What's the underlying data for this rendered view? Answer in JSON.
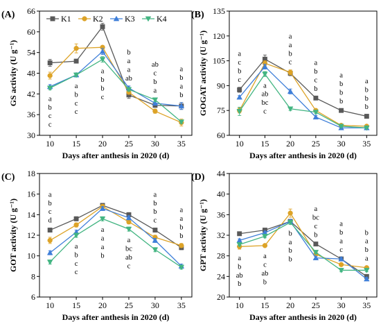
{
  "legend": {
    "placement": "top-left of panel A",
    "series": [
      {
        "name": "K1",
        "color": "#595959",
        "marker": "square"
      },
      {
        "name": "K2",
        "color": "#DDA327",
        "marker": "circle"
      },
      {
        "name": "K3",
        "color": "#3F7FD9",
        "marker": "triangle-up"
      },
      {
        "name": "K4",
        "color": "#43B582",
        "marker": "triangle-down"
      }
    ]
  },
  "chart_data": [
    {
      "type": "line",
      "panel": "(A)",
      "xlabel": "Days after anthesis in 2020 (d)",
      "ylabel": "GS activity (U g⁻¹)",
      "x": [
        10,
        15,
        20,
        25,
        30,
        35
      ],
      "xlim": [
        8,
        37
      ],
      "ylim": [
        30,
        66
      ],
      "yticks": [
        30,
        36,
        42,
        48,
        54,
        60,
        66
      ],
      "grid": false,
      "series": [
        {
          "name": "K1",
          "values": [
            51.0,
            51.5,
            61.5,
            41.7,
            38.7,
            38.5
          ],
          "errors": [
            1.0,
            0.5,
            1.0,
            1.0,
            0.6,
            1.0
          ]
        },
        {
          "name": "K2",
          "values": [
            47.3,
            55.2,
            55.5,
            42.5,
            37.0,
            33.7
          ],
          "errors": [
            1.0,
            1.3,
            0.5,
            0.6,
            0.6,
            1.0
          ]
        },
        {
          "name": "K3",
          "values": [
            44.1,
            47.5,
            54.3,
            43.7,
            39.3,
            38.5
          ],
          "errors": [
            0.6,
            0.6,
            0.9,
            0.6,
            0.5,
            1.0
          ]
        },
        {
          "name": "K4",
          "values": [
            43.7,
            47.5,
            52.0,
            43.3,
            40.3,
            33.9
          ],
          "errors": [
            0.5,
            0.5,
            0.8,
            0.5,
            0.5,
            0.5
          ]
        }
      ],
      "significance": [
        {
          "x": 10,
          "letters": [
            "a",
            "b",
            "c",
            "c"
          ],
          "position": "below"
        },
        {
          "x": 15,
          "letters": [
            "a",
            "b",
            "c",
            "c"
          ],
          "position": "below"
        },
        {
          "x": 20,
          "letters": [
            "a",
            "b",
            "b",
            "c"
          ],
          "position": "below"
        },
        {
          "x": 25,
          "letters": [
            "b",
            "a",
            "a",
            "ab"
          ],
          "position": "above"
        },
        {
          "x": 30,
          "letters": [
            "ab",
            "c",
            "b",
            "a"
          ],
          "position": "above"
        },
        {
          "x": 35,
          "letters": [
            "a",
            "b",
            "a",
            "b"
          ],
          "position": "above"
        }
      ]
    },
    {
      "type": "line",
      "panel": "(B)",
      "xlabel": "Days after anthesis in 2020 (d)",
      "ylabel": "GOGAT activity (U g⁻¹)",
      "x": [
        10,
        15,
        20,
        25,
        30,
        35
      ],
      "xlim": [
        8,
        37
      ],
      "ylim": [
        60,
        135
      ],
      "yticks": [
        60,
        75,
        90,
        105,
        120,
        135
      ],
      "grid": false,
      "series": [
        {
          "name": "K1",
          "values": [
            87.5,
            106.0,
            97.5,
            82.5,
            75.0,
            71.5
          ],
          "errors": [
            1.5,
            2.5,
            1.5,
            1.0,
            1.0,
            1.0
          ]
        },
        {
          "name": "K2",
          "values": [
            75.0,
            103.5,
            98.0,
            75.0,
            66.0,
            65.5
          ],
          "errors": [
            1.5,
            1.5,
            1.5,
            1.0,
            0.5,
            0.5
          ]
        },
        {
          "name": "K3",
          "values": [
            83.0,
            101.5,
            86.5,
            71.0,
            64.5,
            64.5
          ],
          "errors": [
            1.0,
            1.5,
            1.5,
            1.0,
            0.5,
            0.5
          ]
        },
        {
          "name": "K4",
          "values": [
            74.5,
            97.0,
            76.0,
            74.0,
            65.5,
            64.5
          ],
          "errors": [
            2.5,
            1.5,
            1.0,
            1.0,
            0.5,
            0.5
          ]
        }
      ],
      "significance": [
        {
          "x": 10,
          "letters": [
            "a",
            "c",
            "b",
            "c"
          ],
          "position": "above"
        },
        {
          "x": 15,
          "letters": [
            "a",
            "ab",
            "bc",
            "c"
          ],
          "position": "below"
        },
        {
          "x": 20,
          "letters": [
            "a",
            "a",
            "b",
            "c"
          ],
          "position": "above"
        },
        {
          "x": 25,
          "letters": [
            "a",
            "b",
            "c",
            "b"
          ],
          "position": "above"
        },
        {
          "x": 30,
          "letters": [
            "a",
            "b",
            "b",
            "b"
          ],
          "position": "above"
        },
        {
          "x": 35,
          "letters": [
            "a",
            "b",
            "b",
            "b"
          ],
          "position": "above"
        }
      ]
    },
    {
      "type": "line",
      "panel": "(C)",
      "xlabel": "Days after anthesis in 2020 (d)",
      "ylabel": "GOT activity (U g⁻¹)",
      "x": [
        10,
        15,
        20,
        25,
        30,
        35
      ],
      "xlim": [
        8,
        37
      ],
      "ylim": [
        6,
        18
      ],
      "yticks": [
        6,
        8,
        10,
        12,
        14,
        16,
        18
      ],
      "grid": false,
      "series": [
        {
          "name": "K1",
          "values": [
            12.5,
            13.6,
            14.9,
            14.0,
            12.5,
            10.8
          ],
          "errors": [
            0.2,
            0.2,
            0.2,
            0.2,
            0.2,
            0.2
          ]
        },
        {
          "name": "K2",
          "values": [
            11.5,
            13.0,
            14.8,
            13.3,
            11.8,
            11.0
          ],
          "errors": [
            0.3,
            0.2,
            0.2,
            0.2,
            0.2,
            0.2
          ]
        },
        {
          "name": "K3",
          "values": [
            10.3,
            12.3,
            14.6,
            13.7,
            11.5,
            9.0
          ],
          "errors": [
            0.2,
            0.2,
            0.2,
            0.2,
            0.2,
            0.2
          ]
        },
        {
          "name": "K4",
          "values": [
            9.4,
            12.0,
            13.6,
            12.6,
            10.6,
            8.9
          ],
          "errors": [
            0.2,
            0.2,
            0.2,
            0.2,
            0.2,
            0.2
          ]
        }
      ],
      "significance": [
        {
          "x": 10,
          "letters": [
            "a",
            "b",
            "c",
            "d"
          ],
          "position": "above"
        },
        {
          "x": 15,
          "letters": [
            "a",
            "b",
            "c",
            "c"
          ],
          "position": "below"
        },
        {
          "x": 20,
          "letters": [
            "a",
            "a",
            "a",
            "b"
          ],
          "position": "below"
        },
        {
          "x": 25,
          "letters": [
            "a",
            "bc",
            "ab",
            "c"
          ],
          "position": "below"
        },
        {
          "x": 30,
          "letters": [
            "a",
            "b",
            "b",
            "c"
          ],
          "position": "above"
        },
        {
          "x": 35,
          "letters": [
            "a",
            "a",
            "b",
            "b"
          ],
          "position": "above"
        }
      ]
    },
    {
      "type": "line",
      "panel": "(D)",
      "xlabel": "Days after anthesis in 2020 (d)",
      "ylabel": "GPT activity (U g⁻¹)",
      "x": [
        10,
        15,
        20,
        25,
        30,
        35
      ],
      "xlim": [
        8,
        37
      ],
      "ylim": [
        20,
        44
      ],
      "yticks": [
        20,
        24,
        28,
        32,
        36,
        40,
        44
      ],
      "grid": false,
      "series": [
        {
          "name": "K1",
          "values": [
            32.3,
            33.0,
            34.7,
            30.3,
            27.4,
            24.0
          ],
          "errors": [
            0.3,
            0.3,
            0.4,
            0.3,
            0.3,
            0.3
          ]
        },
        {
          "name": "K2",
          "values": [
            29.8,
            30.0,
            36.3,
            28.3,
            26.3,
            25.7
          ],
          "errors": [
            0.5,
            0.3,
            0.8,
            0.3,
            0.3,
            0.3
          ]
        },
        {
          "name": "K3",
          "values": [
            31.0,
            32.5,
            34.7,
            27.6,
            27.4,
            23.5
          ],
          "errors": [
            0.3,
            0.3,
            0.4,
            0.3,
            0.3,
            0.3
          ]
        },
        {
          "name": "K4",
          "values": [
            30.2,
            31.8,
            34.5,
            28.7,
            25.2,
            25.2
          ],
          "errors": [
            0.3,
            0.3,
            0.4,
            0.3,
            0.3,
            0.3
          ]
        }
      ],
      "significance": [
        {
          "x": 10,
          "letters": [
            "a",
            "b",
            "ab",
            "b"
          ],
          "position": "below"
        },
        {
          "x": 15,
          "letters": [
            "a",
            "c",
            "ab",
            "b"
          ],
          "position": "below"
        },
        {
          "x": 20,
          "letters": [
            "b",
            "a",
            "b",
            "b"
          ],
          "position": "below"
        },
        {
          "x": 25,
          "letters": [
            "a",
            "bc",
            "c",
            "b"
          ],
          "position": "above"
        },
        {
          "x": 30,
          "letters": [
            "a",
            "b",
            "a",
            "c"
          ],
          "position": "above"
        },
        {
          "x": 35,
          "letters": [
            "b",
            "a",
            "b",
            "a"
          ],
          "position": "above"
        }
      ]
    }
  ]
}
